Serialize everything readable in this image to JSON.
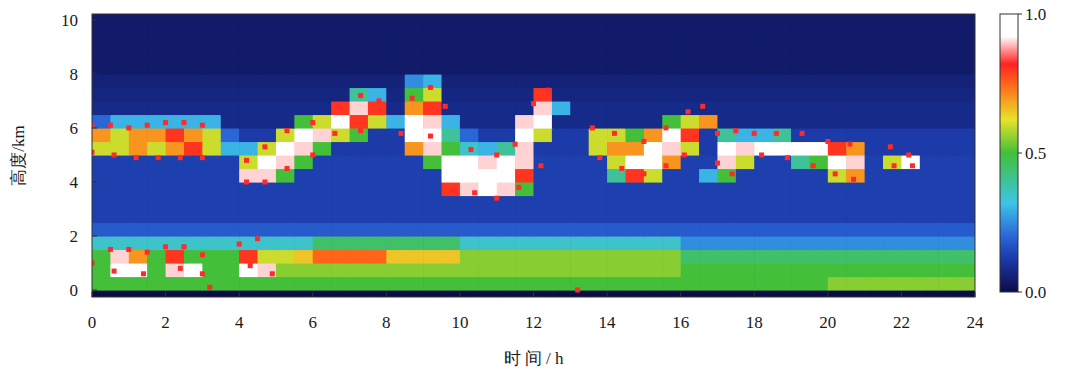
{
  "chart_data": {
    "type": "heatmap",
    "x_label": "时 间 / h",
    "y_label": "高度/km",
    "xlim": [
      0,
      24
    ],
    "ylim": [
      -0.26,
      10.22
    ],
    "xticks": [
      0,
      2,
      4,
      6,
      8,
      10,
      12,
      14,
      16,
      18,
      20,
      22,
      24
    ],
    "yticks": [
      0,
      2,
      4,
      6,
      8,
      10
    ],
    "xbins": [
      0,
      0.5,
      1,
      1.5,
      2,
      2.5,
      3,
      3.5,
      4,
      4.5,
      5,
      5.5,
      6,
      6.5,
      7,
      7.5,
      8,
      8.5,
      9,
      9.5,
      10,
      10.5,
      11,
      11.5,
      12,
      12.5,
      13,
      13.5,
      14,
      14.5,
      15,
      15.5,
      16,
      16.5,
      17,
      17.5,
      18,
      18.5,
      19,
      19.5,
      20,
      20.5,
      21,
      21.5,
      22,
      22.5,
      23,
      23.5,
      24
    ],
    "ybins": [
      0,
      0.5,
      1,
      1.5,
      2,
      2.5,
      3,
      3.5,
      4,
      4.5,
      5,
      5.5,
      6,
      6.5,
      7,
      7.5,
      8,
      8.5,
      9,
      9.5,
      10,
      10.5
    ],
    "cells": [
      [
        0.5,
        0.5,
        0.5,
        0.5,
        0.5,
        0.5,
        0.5,
        0.5,
        0.5,
        0.5,
        0.5,
        0.5,
        0.5,
        0.5,
        0.5,
        0.5,
        0.5,
        0.5,
        0.5,
        0.5,
        0.5,
        0.5,
        0.5,
        0.5,
        0.5,
        0.5,
        0.5,
        0.5,
        0.5,
        0.5,
        0.5,
        0.5,
        0.5,
        0.5,
        0.5,
        0.5,
        0.5,
        0.5,
        0.5,
        0.5,
        0.55,
        0.55,
        0.55,
        0.55,
        0.55,
        0.55,
        0.55,
        0.55
      ],
      [
        0.5,
        1,
        1,
        0.5,
        0.9,
        1,
        0.5,
        0.5,
        1,
        0.9,
        0.55,
        0.55,
        0.55,
        0.55,
        0.55,
        0.55,
        0.55,
        0.55,
        0.55,
        0.55,
        0.55,
        0.55,
        0.55,
        0.55,
        0.55,
        0.55,
        0.55,
        0.55,
        0.55,
        0.55,
        0.55,
        0.55,
        0.5,
        0.5,
        0.5,
        0.5,
        0.5,
        0.5,
        0.5,
        0.5,
        0.5,
        0.5,
        0.5,
        0.5,
        0.5,
        0.5,
        0.5,
        0.5
      ],
      [
        0.5,
        0.9,
        0.7,
        0.5,
        0.8,
        0.5,
        0.5,
        0.5,
        0.8,
        0.6,
        0.6,
        0.65,
        0.75,
        0.75,
        0.75,
        0.75,
        0.65,
        0.65,
        0.65,
        0.65,
        0.55,
        0.55,
        0.55,
        0.55,
        0.55,
        0.55,
        0.55,
        0.55,
        0.55,
        0.55,
        0.55,
        0.55,
        0.45,
        0.45,
        0.45,
        0.45,
        0.45,
        0.45,
        0.45,
        0.45,
        0.45,
        0.45,
        0.45,
        0.45,
        0.45,
        0.45,
        0.45,
        0.45
      ],
      [
        0.35,
        0.35,
        0.35,
        0.35,
        0.35,
        0.35,
        0.35,
        0.35,
        0.35,
        0.35,
        0.35,
        0.35,
        0.45,
        0.45,
        0.45,
        0.45,
        0.45,
        0.45,
        0.45,
        0.45,
        0.35,
        0.35,
        0.35,
        0.35,
        0.35,
        0.35,
        0.35,
        0.35,
        0.35,
        0.35,
        0.35,
        0.35,
        0.25,
        0.25,
        0.25,
        0.25,
        0.25,
        0.25,
        0.25,
        0.25,
        0.25,
        0.25,
        0.25,
        0.25,
        0.25,
        0.25,
        0.25,
        0.25
      ],
      [
        0.18,
        0.18,
        0.18,
        0.18,
        0.18,
        0.18,
        0.18,
        0.18,
        0.18,
        0.18,
        0.18,
        0.18,
        0.18,
        0.18,
        0.18,
        0.18,
        0.18,
        0.18,
        0.18,
        0.18,
        0.18,
        0.18,
        0.18,
        0.18,
        0.18,
        0.18,
        0.18,
        0.18,
        0.18,
        0.18,
        0.18,
        0.18,
        0.18,
        0.18,
        0.18,
        0.18,
        0.18,
        0.18,
        0.18,
        0.18,
        0.18,
        0.18,
        0.18,
        0.18,
        0.18,
        0.18,
        0.18,
        0.18
      ],
      [
        0.13,
        0.13,
        0.13,
        0.13,
        0.13,
        0.13,
        0.13,
        0.13,
        0.13,
        0.13,
        0.13,
        0.13,
        0.13,
        0.13,
        0.13,
        0.13,
        0.13,
        0.13,
        0.13,
        0.13,
        0.13,
        0.13,
        0.13,
        0.13,
        0.13,
        0.13,
        0.13,
        0.13,
        0.13,
        0.13,
        0.13,
        0.13,
        0.13,
        0.13,
        0.13,
        0.13,
        0.13,
        0.13,
        0.13,
        0.13,
        0.13,
        0.13,
        0.13,
        0.13,
        0.13,
        0.13,
        0.13,
        0.13
      ],
      [
        0.13,
        0.13,
        0.13,
        0.13,
        0.13,
        0.13,
        0.13,
        0.13,
        0.13,
        0.13,
        0.13,
        0.13,
        0.13,
        0.13,
        0.13,
        0.13,
        0.13,
        0.13,
        0.13,
        0.13,
        0.13,
        0.13,
        0.13,
        0.13,
        0.13,
        0.13,
        0.13,
        0.13,
        0.13,
        0.13,
        0.13,
        0.13,
        0.13,
        0.13,
        0.13,
        0.13,
        0.13,
        0.13,
        0.13,
        0.13,
        0.13,
        0.13,
        0.13,
        0.13,
        0.13,
        0.13,
        0.13,
        0.13
      ],
      [
        0.13,
        0.13,
        0.13,
        0.13,
        0.13,
        0.13,
        0.13,
        0.13,
        0.13,
        0.13,
        0.13,
        0.13,
        0.13,
        0.13,
        0.13,
        0.13,
        0.13,
        0.13,
        0.13,
        0.8,
        0.9,
        1,
        0.9,
        0.5,
        0.13,
        0.13,
        0.13,
        0.13,
        0.13,
        0.13,
        0.13,
        0.13,
        0.13,
        0.13,
        0.13,
        0.13,
        0.13,
        0.13,
        0.13,
        0.13,
        0.13,
        0.13,
        0.13,
        0.13,
        0.13,
        0.13,
        0.13,
        0.13
      ],
      [
        0.13,
        0.13,
        0.13,
        0.13,
        0.13,
        0.13,
        0.13,
        0.13,
        0.9,
        0.9,
        0.5,
        0.13,
        0.13,
        0.13,
        0.13,
        0.13,
        0.13,
        0.13,
        0.13,
        1,
        1,
        1,
        1,
        0.8,
        0.13,
        0.13,
        0.13,
        0.13,
        0.4,
        0.8,
        0.6,
        0.13,
        0.13,
        0.3,
        0.5,
        0.13,
        0.13,
        0.13,
        0.13,
        0.13,
        0.6,
        0.7,
        0.13,
        0.13,
        0.13,
        0.13,
        0.13,
        0.13
      ],
      [
        0.13,
        0.13,
        0.13,
        0.13,
        0.13,
        0.13,
        0.13,
        0.13,
        0.6,
        1,
        0.9,
        0.5,
        0.13,
        0.13,
        0.13,
        0.13,
        0.13,
        0.13,
        0.5,
        1,
        0.95,
        0.9,
        1,
        0.9,
        0.13,
        0.13,
        0.13,
        0.13,
        0.6,
        1,
        1,
        0.7,
        0.13,
        0.13,
        0.9,
        0.6,
        0.13,
        0.13,
        0.4,
        0.5,
        1,
        0.9,
        0.13,
        0.6,
        1,
        0.13,
        0.13,
        0.13
      ],
      [
        0.6,
        0.6,
        0.7,
        0.6,
        0.7,
        0.8,
        0.6,
        0.3,
        0.3,
        0.6,
        1,
        0.9,
        0.5,
        0.12,
        0.12,
        0.12,
        0.12,
        0.7,
        0.9,
        0.5,
        0.35,
        0.3,
        0.4,
        0.9,
        0.12,
        0.12,
        0.12,
        0.6,
        0.7,
        0.7,
        1,
        0.9,
        0.6,
        0.12,
        1,
        0.9,
        1,
        1,
        1,
        1,
        0.8,
        0.7,
        0.12,
        0.12,
        0.12,
        0.12,
        0.12,
        0.12
      ],
      [
        0.7,
        0.6,
        0.7,
        0.7,
        0.8,
        0.7,
        0.6,
        0.2,
        0.12,
        0.12,
        0.6,
        1,
        0.9,
        0.6,
        0.5,
        0.12,
        0.12,
        1,
        1,
        0.4,
        0.2,
        0.12,
        0.12,
        1,
        0.6,
        0.12,
        0.12,
        0.6,
        0.6,
        0.5,
        0.7,
        1,
        0.8,
        0.12,
        0.4,
        0.3,
        0.3,
        0.4,
        0.12,
        0.12,
        0.12,
        0.12,
        0.12,
        0.12,
        0.12,
        0.12,
        0.12,
        0.12
      ],
      [
        0.2,
        0.3,
        0.3,
        0.3,
        0.3,
        0.3,
        0.3,
        0.08,
        0.08,
        0.08,
        0.08,
        0.5,
        0.6,
        1,
        0.8,
        0.6,
        0.3,
        1,
        0.9,
        0.3,
        0.08,
        0.08,
        0.08,
        0.9,
        1,
        0.08,
        0.08,
        0.08,
        0.08,
        0.08,
        0.08,
        0.5,
        0.6,
        0.7,
        0.08,
        0.08,
        0.08,
        0.08,
        0.08,
        0.08,
        0.08,
        0.08,
        0.08,
        0.08,
        0.08,
        0.08,
        0.08,
        0.08
      ],
      [
        0.08,
        0.08,
        0.08,
        0.08,
        0.08,
        0.08,
        0.08,
        0.08,
        0.08,
        0.08,
        0.08,
        0.08,
        0.08,
        0.8,
        0.9,
        0.8,
        0.08,
        0.7,
        0.8,
        0.08,
        0.08,
        0.08,
        0.08,
        0.08,
        0.9,
        0.3,
        0.08,
        0.08,
        0.08,
        0.08,
        0.08,
        0.08,
        0.08,
        0.08,
        0.08,
        0.08,
        0.08,
        0.08,
        0.08,
        0.08,
        0.08,
        0.08,
        0.08,
        0.08,
        0.08,
        0.08,
        0.08,
        0.08
      ],
      [
        0.07,
        0.07,
        0.07,
        0.07,
        0.07,
        0.07,
        0.07,
        0.07,
        0.07,
        0.07,
        0.07,
        0.07,
        0.07,
        0.07,
        0.4,
        0.3,
        0.07,
        0.5,
        0.6,
        0.07,
        0.07,
        0.07,
        0.07,
        0.07,
        0.8,
        0.07,
        0.07,
        0.07,
        0.07,
        0.07,
        0.07,
        0.07,
        0.07,
        0.07,
        0.07,
        0.07,
        0.07,
        0.07,
        0.07,
        0.07,
        0.07,
        0.07,
        0.07,
        0.07,
        0.07,
        0.07,
        0.07,
        0.07
      ],
      [
        0.06,
        0.06,
        0.06,
        0.06,
        0.06,
        0.06,
        0.06,
        0.06,
        0.06,
        0.06,
        0.06,
        0.06,
        0.06,
        0.06,
        0.06,
        0.06,
        0.06,
        0.25,
        0.3,
        0.06,
        0.06,
        0.06,
        0.06,
        0.06,
        0.06,
        0.06,
        0.06,
        0.06,
        0.06,
        0.06,
        0.06,
        0.06,
        0.06,
        0.06,
        0.06,
        0.06,
        0.06,
        0.06,
        0.06,
        0.06,
        0.06,
        0.06,
        0.06,
        0.06,
        0.06,
        0.06,
        0.06,
        0.06
      ],
      [
        0.04,
        0.04,
        0.04,
        0.04,
        0.04,
        0.04,
        0.04,
        0.04,
        0.04,
        0.04,
        0.04,
        0.04,
        0.04,
        0.04,
        0.04,
        0.04,
        0.04,
        0.04,
        0.04,
        0.04,
        0.04,
        0.04,
        0.04,
        0.04,
        0.04,
        0.04,
        0.04,
        0.04,
        0.04,
        0.04,
        0.04,
        0.04,
        0.04,
        0.04,
        0.04,
        0.04,
        0.04,
        0.04,
        0.04,
        0.04,
        0.04,
        0.04,
        0.04,
        0.04,
        0.04,
        0.04,
        0.04,
        0.04
      ],
      [
        0.04,
        0.04,
        0.04,
        0.04,
        0.04,
        0.04,
        0.04,
        0.04,
        0.04,
        0.04,
        0.04,
        0.04,
        0.04,
        0.04,
        0.04,
        0.04,
        0.04,
        0.04,
        0.04,
        0.04,
        0.04,
        0.04,
        0.04,
        0.04,
        0.04,
        0.04,
        0.04,
        0.04,
        0.04,
        0.04,
        0.04,
        0.04,
        0.04,
        0.04,
        0.04,
        0.04,
        0.04,
        0.04,
        0.04,
        0.04,
        0.04,
        0.04,
        0.04,
        0.04,
        0.04,
        0.04,
        0.04,
        0.04
      ],
      [
        0.04,
        0.04,
        0.04,
        0.04,
        0.04,
        0.04,
        0.04,
        0.04,
        0.04,
        0.04,
        0.04,
        0.04,
        0.04,
        0.04,
        0.04,
        0.04,
        0.04,
        0.04,
        0.04,
        0.04,
        0.04,
        0.04,
        0.04,
        0.04,
        0.04,
        0.04,
        0.04,
        0.04,
        0.04,
        0.04,
        0.04,
        0.04,
        0.04,
        0.04,
        0.04,
        0.04,
        0.04,
        0.04,
        0.04,
        0.04,
        0.04,
        0.04,
        0.04,
        0.04,
        0.04,
        0.04,
        0.04,
        0.04
      ],
      [
        0.04,
        0.04,
        0.04,
        0.04,
        0.04,
        0.04,
        0.04,
        0.04,
        0.04,
        0.04,
        0.04,
        0.04,
        0.04,
        0.04,
        0.04,
        0.04,
        0.04,
        0.04,
        0.04,
        0.04,
        0.04,
        0.04,
        0.04,
        0.04,
        0.04,
        0.04,
        0.04,
        0.04,
        0.04,
        0.04,
        0.04,
        0.04,
        0.04,
        0.04,
        0.04,
        0.04,
        0.04,
        0.04,
        0.04,
        0.04,
        0.04,
        0.04,
        0.04,
        0.04,
        0.04,
        0.04,
        0.04,
        0.04
      ],
      [
        0.04,
        0.04,
        0.04,
        0.04,
        0.04,
        0.04,
        0.04,
        0.04,
        0.04,
        0.04,
        0.04,
        0.04,
        0.04,
        0.04,
        0.04,
        0.04,
        0.04,
        0.04,
        0.04,
        0.04,
        0.04,
        0.04,
        0.04,
        0.04,
        0.04,
        0.04,
        0.04,
        0.04,
        0.04,
        0.04,
        0.04,
        0.04,
        0.04,
        0.04,
        0.04,
        0.04,
        0.04,
        0.04,
        0.04,
        0.04,
        0.04,
        0.04,
        0.04,
        0.04,
        0.04,
        0.04,
        0.04,
        0.04
      ]
    ],
    "colorbar": {
      "range": [
        0,
        1
      ],
      "ticks": [
        {
          "value": 0,
          "label": "0.0"
        },
        {
          "value": 0.5,
          "label": "0.5"
        },
        {
          "value": 1,
          "label": "1.0"
        }
      ]
    },
    "series": [
      {
        "type": "scatter",
        "color": "#ff2a2a",
        "marker": "square",
        "x": [
          0,
          0.5,
          1,
          1.5,
          2,
          2.5,
          3,
          4.2,
          4.7,
          5.3,
          6,
          6.7,
          7.3,
          7.8,
          8.7,
          9.2,
          9.6,
          10.3,
          11,
          11.5,
          12,
          12.4,
          13.6,
          14.2,
          15,
          15.6,
          16.2,
          16.6,
          17,
          17.5,
          18,
          18.6,
          19.3,
          20,
          20.6,
          21.7,
          22.2,
          0,
          0.6,
          1.2,
          1.8,
          2.4,
          3,
          4.2,
          4.7,
          5.3,
          6,
          6.6,
          7.3,
          8.4,
          9.2,
          9.8,
          10.4,
          11,
          11.6,
          12.2,
          13.8,
          14.4,
          15,
          15.6,
          16.1,
          17,
          17.4,
          18.2,
          18.9,
          19.6,
          20.2,
          20.7,
          21.8,
          22.3,
          0,
          0.5,
          1,
          1.5,
          0.6,
          1.4,
          2,
          2.5,
          3,
          2.4,
          3,
          3.2,
          4,
          4.5,
          4.3,
          4.9,
          13.2
        ],
        "values": [
          6.1,
          6.1,
          6.0,
          6.1,
          6.2,
          6.2,
          6.1,
          4.8,
          5.3,
          5.9,
          6.2,
          6.8,
          7.2,
          7.0,
          7.1,
          7.5,
          6.8,
          5.2,
          5.0,
          5.4,
          6.9,
          7.4,
          6.0,
          5.8,
          5.5,
          6.0,
          6.6,
          6.8,
          5.8,
          5.9,
          5.8,
          5.8,
          5.8,
          5.5,
          5.4,
          5.3,
          5.0,
          5.1,
          5.0,
          4.9,
          4.9,
          4.9,
          4.9,
          4.0,
          4.0,
          4.5,
          5.0,
          5.8,
          5.9,
          5.8,
          5.7,
          3.7,
          3.6,
          3.4,
          3.8,
          4.6,
          4.9,
          4.5,
          4.3,
          4.6,
          5.0,
          4.7,
          4.3,
          5.0,
          4.9,
          4.6,
          4.3,
          4.1,
          4.6,
          4.6,
          1.0,
          1.5,
          1.5,
          1.4,
          0.7,
          0.6,
          1.6,
          1.6,
          1.3,
          0.8,
          0.6,
          0.1,
          1.7,
          1.9,
          0.9,
          0.6,
          0.0
        ]
      }
    ]
  }
}
